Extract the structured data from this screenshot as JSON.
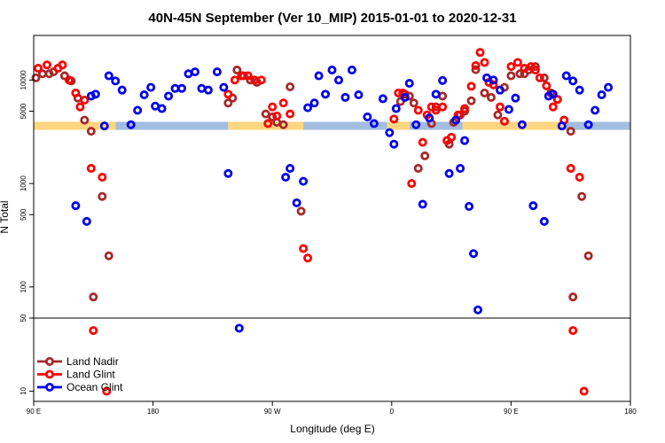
{
  "chart_data": {
    "type": "scatter",
    "title": "40N-45N September (Ver 10_MIP)   2015-01-01 to 2020-12-31",
    "xlabel": "Longitude (deg E)",
    "ylabel": "N Total",
    "x_range": [
      90,
      360
    ],
    "x_ticks": [
      {
        "value": 90,
        "label": "90 E"
      },
      {
        "value": 144,
        "label": "180"
      },
      {
        "value": 198,
        "label": "90 W"
      },
      {
        "value": 252,
        "label": "0"
      },
      {
        "value": 306,
        "label": "90 E"
      },
      {
        "value": 360,
        "label": "180"
      }
    ],
    "y_scale": "log",
    "y_upper_range": [
      50,
      27000
    ],
    "y_upper_ticks": [
      {
        "value": 50,
        "label": "50"
      },
      {
        "value": 100,
        "label": "100"
      },
      {
        "value": 500,
        "label": "500"
      },
      {
        "value": 1000,
        "label": "1000"
      },
      {
        "value": 5000,
        "label": "5000"
      },
      {
        "value": 10000,
        "label": "10000"
      }
    ],
    "y_lower_range": [
      8,
      50
    ],
    "y_lower_ticks": [
      {
        "value": 10,
        "label": "10"
      }
    ],
    "land_ocean_band": {
      "y_range": [
        3300,
        3950
      ],
      "land_color": "#ffd680",
      "ocean_color": "#a3bde0",
      "segments": [
        {
          "from": 90,
          "to": 127,
          "kind": "land"
        },
        {
          "from": 127,
          "to": 178,
          "kind": "ocean"
        },
        {
          "from": 178,
          "to": 212,
          "kind": "land"
        },
        {
          "from": 212,
          "to": 250,
          "kind": "ocean"
        },
        {
          "from": 250,
          "to": 260,
          "kind": "land"
        },
        {
          "from": 260,
          "to": 284,
          "kind": "ocean"
        },
        {
          "from": 284,
          "to": 330,
          "kind": "land"
        },
        {
          "from": 330,
          "to": 360,
          "kind": "ocean"
        }
      ]
    },
    "series": [
      {
        "name": "Land Nadir",
        "color": "#a52a2a",
        "points": [
          [
            91,
            10500
          ],
          [
            94,
            11500
          ],
          [
            97,
            11500
          ],
          [
            99,
            12000
          ],
          [
            104,
            11000
          ],
          [
            107,
            9800
          ],
          [
            110,
            6700
          ],
          [
            113,
            4100
          ],
          [
            116,
            3200
          ],
          [
            117,
            80
          ],
          [
            121,
            750
          ],
          [
            124,
            200
          ],
          [
            178,
            6000
          ],
          [
            180,
            6700
          ],
          [
            182,
            12500
          ],
          [
            185,
            11000
          ],
          [
            188,
            10000
          ],
          [
            191,
            9500
          ],
          [
            195,
            4700
          ],
          [
            198,
            4400
          ],
          [
            200,
            3900
          ],
          [
            203,
            3700
          ],
          [
            206,
            8600
          ],
          [
            211,
            540
          ],
          [
            256,
            6200
          ],
          [
            258,
            7300
          ],
          [
            260,
            7000
          ],
          [
            262,
            6000
          ],
          [
            264,
            1400
          ],
          [
            267,
            1850
          ],
          [
            270,
            3800
          ],
          [
            272,
            5500
          ],
          [
            275,
            7000
          ],
          [
            278,
            2400
          ],
          [
            280,
            3900
          ],
          [
            283,
            4600
          ],
          [
            285,
            5000
          ],
          [
            288,
            6300
          ],
          [
            290,
            12600
          ],
          [
            294,
            7500
          ],
          [
            297,
            6800
          ],
          [
            300,
            4600
          ],
          [
            303,
            8500
          ],
          [
            306,
            11000
          ],
          [
            310,
            11500
          ],
          [
            312,
            11500
          ],
          [
            314,
            12500
          ],
          [
            317,
            13500
          ],
          [
            321,
            10500
          ],
          [
            324,
            7500
          ],
          [
            327,
            6500
          ],
          [
            330,
            4100
          ],
          [
            333,
            3200
          ],
          [
            334,
            80
          ],
          [
            338,
            750
          ],
          [
            341,
            200
          ]
        ]
      },
      {
        "name": "Land Glint",
        "color": "#ff0000",
        "points": [
          [
            92,
            13000
          ],
          [
            96,
            14000
          ],
          [
            101,
            13000
          ],
          [
            103,
            14000
          ],
          [
            106,
            10000
          ],
          [
            109,
            7500
          ],
          [
            111,
            5500
          ],
          [
            113,
            6400
          ],
          [
            116,
            1400
          ],
          [
            117,
            38
          ],
          [
            121,
            1150
          ],
          [
            123,
            10
          ],
          [
            178,
            7300
          ],
          [
            181,
            10000
          ],
          [
            184,
            11000
          ],
          [
            187,
            11000
          ],
          [
            190,
            10000
          ],
          [
            193,
            10000
          ],
          [
            196,
            3800
          ],
          [
            198,
            5500
          ],
          [
            200,
            4500
          ],
          [
            203,
            6000
          ],
          [
            206,
            4700
          ],
          [
            212,
            235
          ],
          [
            214,
            190
          ],
          [
            253,
            4200
          ],
          [
            255,
            7500
          ],
          [
            257,
            7500
          ],
          [
            261,
            1000
          ],
          [
            264,
            5100
          ],
          [
            266,
            2500
          ],
          [
            268,
            4600
          ],
          [
            270,
            5500
          ],
          [
            272,
            5100
          ],
          [
            275,
            5500
          ],
          [
            277,
            2600
          ],
          [
            279,
            2800
          ],
          [
            282,
            4600
          ],
          [
            285,
            5300
          ],
          [
            288,
            8700
          ],
          [
            290,
            13800
          ],
          [
            292,
            18500
          ],
          [
            294,
            14800
          ],
          [
            296,
            9500
          ],
          [
            298,
            9000
          ],
          [
            301,
            5500
          ],
          [
            303,
            4000
          ],
          [
            306,
            13500
          ],
          [
            309,
            14800
          ],
          [
            312,
            13000
          ],
          [
            315,
            13500
          ],
          [
            317,
            12500
          ],
          [
            319,
            10500
          ],
          [
            322,
            8800
          ],
          [
            325,
            5500
          ],
          [
            327,
            6500
          ],
          [
            330,
            4100
          ],
          [
            333,
            1400
          ],
          [
            334,
            38
          ],
          [
            337,
            1150
          ],
          [
            339,
            10
          ]
        ]
      },
      {
        "name": "Ocean Glint",
        "color": "#0000ee",
        "points": [
          [
            109,
            610
          ],
          [
            114,
            430
          ],
          [
            116,
            7000
          ],
          [
            118,
            7300
          ],
          [
            122,
            3600
          ],
          [
            124,
            11000
          ],
          [
            127,
            9800
          ],
          [
            130,
            8000
          ],
          [
            134,
            3700
          ],
          [
            137,
            5100
          ],
          [
            140,
            7200
          ],
          [
            143,
            8500
          ],
          [
            145,
            5600
          ],
          [
            148,
            5300
          ],
          [
            151,
            7000
          ],
          [
            154,
            8300
          ],
          [
            157,
            8300
          ],
          [
            160,
            11500
          ],
          [
            163,
            12000
          ],
          [
            166,
            8300
          ],
          [
            169,
            8000
          ],
          [
            173,
            12000
          ],
          [
            176,
            8500
          ],
          [
            178,
            1250
          ],
          [
            183,
            40
          ],
          [
            204,
            1150
          ],
          [
            206,
            1400
          ],
          [
            209,
            650
          ],
          [
            212,
            1050
          ],
          [
            214,
            5400
          ],
          [
            217,
            6000
          ],
          [
            219,
            11000
          ],
          [
            222,
            7300
          ],
          [
            225,
            12500
          ],
          [
            228,
            10000
          ],
          [
            231,
            6800
          ],
          [
            234,
            12500
          ],
          [
            237,
            7200
          ],
          [
            241,
            4400
          ],
          [
            244,
            3800
          ],
          [
            248,
            6600
          ],
          [
            251,
            3100
          ],
          [
            253,
            2400
          ],
          [
            254,
            5300
          ],
          [
            258,
            6800
          ],
          [
            260,
            9300
          ],
          [
            263,
            3700
          ],
          [
            266,
            630
          ],
          [
            269,
            4300
          ],
          [
            272,
            7300
          ],
          [
            275,
            9900
          ],
          [
            278,
            1250
          ],
          [
            281,
            4100
          ],
          [
            283,
            1400
          ],
          [
            285,
            2600
          ],
          [
            287,
            600
          ],
          [
            289,
            210
          ],
          [
            291,
            60
          ],
          [
            295,
            10500
          ],
          [
            298,
            10000
          ],
          [
            301,
            8000
          ],
          [
            305,
            5200
          ],
          [
            308,
            6700
          ],
          [
            311,
            3700
          ],
          [
            316,
            610
          ],
          [
            321,
            430
          ],
          [
            323,
            7000
          ],
          [
            325,
            7300
          ],
          [
            329,
            3600
          ],
          [
            331,
            11000
          ],
          [
            334,
            9800
          ],
          [
            337,
            8000
          ],
          [
            341,
            3700
          ],
          [
            344,
            5100
          ],
          [
            347,
            7200
          ],
          [
            350,
            8500
          ]
        ]
      }
    ],
    "legend": {
      "position": "bottom-left",
      "entries": [
        {
          "label": "Land Nadir",
          "color": "#a52a2a"
        },
        {
          "label": "Land Glint",
          "color": "#ff0000"
        },
        {
          "label": "Ocean Glint",
          "color": "#0000ee"
        }
      ]
    }
  }
}
